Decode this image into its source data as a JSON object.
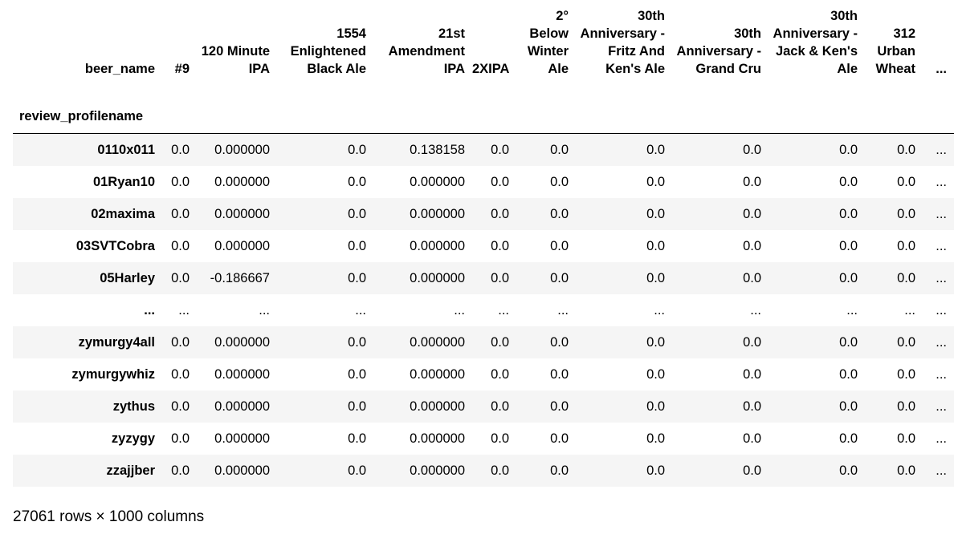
{
  "columns_header_label": "beer_name",
  "index_header_label": "review_profilename",
  "columns": [
    "#9",
    "120 Minute IPA",
    "1554 Enlightened Black Ale",
    "21st Amendment IPA",
    "2XIPA",
    "2° Below Winter Ale",
    "30th Anniversary - Fritz And Ken's Ale",
    "30th Anniversary - Grand Cru",
    "30th Anniversary - Jack & Ken's Ale",
    "312 Urban Wheat",
    "..."
  ],
  "rows": [
    {
      "label": "0110x011",
      "cells": [
        "0.0",
        "0.000000",
        "0.0",
        "0.138158",
        "0.0",
        "0.0",
        "0.0",
        "0.0",
        "0.0",
        "0.0",
        "..."
      ]
    },
    {
      "label": "01Ryan10",
      "cells": [
        "0.0",
        "0.000000",
        "0.0",
        "0.000000",
        "0.0",
        "0.0",
        "0.0",
        "0.0",
        "0.0",
        "0.0",
        "..."
      ]
    },
    {
      "label": "02maxima",
      "cells": [
        "0.0",
        "0.000000",
        "0.0",
        "0.000000",
        "0.0",
        "0.0",
        "0.0",
        "0.0",
        "0.0",
        "0.0",
        "..."
      ]
    },
    {
      "label": "03SVTCobra",
      "cells": [
        "0.0",
        "0.000000",
        "0.0",
        "0.000000",
        "0.0",
        "0.0",
        "0.0",
        "0.0",
        "0.0",
        "0.0",
        "..."
      ]
    },
    {
      "label": "05Harley",
      "cells": [
        "0.0",
        "-0.186667",
        "0.0",
        "0.000000",
        "0.0",
        "0.0",
        "0.0",
        "0.0",
        "0.0",
        "0.0",
        "..."
      ]
    },
    {
      "label": "...",
      "cells": [
        "...",
        "...",
        "...",
        "...",
        "...",
        "...",
        "...",
        "...",
        "...",
        "...",
        "..."
      ]
    },
    {
      "label": "zymurgy4all",
      "cells": [
        "0.0",
        "0.000000",
        "0.0",
        "0.000000",
        "0.0",
        "0.0",
        "0.0",
        "0.0",
        "0.0",
        "0.0",
        "..."
      ]
    },
    {
      "label": "zymurgywhiz",
      "cells": [
        "0.0",
        "0.000000",
        "0.0",
        "0.000000",
        "0.0",
        "0.0",
        "0.0",
        "0.0",
        "0.0",
        "0.0",
        "..."
      ]
    },
    {
      "label": "zythus",
      "cells": [
        "0.0",
        "0.000000",
        "0.0",
        "0.000000",
        "0.0",
        "0.0",
        "0.0",
        "0.0",
        "0.0",
        "0.0",
        "..."
      ]
    },
    {
      "label": "zyzygy",
      "cells": [
        "0.0",
        "0.000000",
        "0.0",
        "0.000000",
        "0.0",
        "0.0",
        "0.0",
        "0.0",
        "0.0",
        "0.0",
        "..."
      ]
    },
    {
      "label": "zzajjber",
      "cells": [
        "0.0",
        "0.000000",
        "0.0",
        "0.000000",
        "0.0",
        "0.0",
        "0.0",
        "0.0",
        "0.0",
        "0.0",
        "..."
      ]
    }
  ],
  "footer": "27061 rows × 1000 columns"
}
